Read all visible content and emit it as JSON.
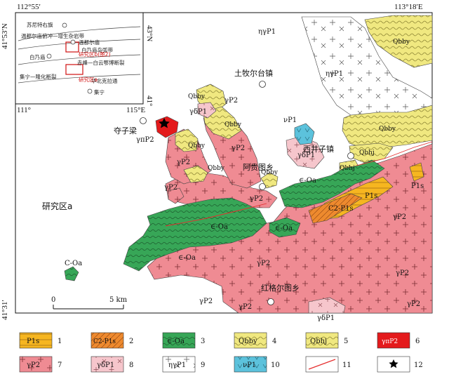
{
  "coords": {
    "top_left": "112°55′",
    "top_right": "113°18′E",
    "left_top": "41°53′N",
    "left_bottom": "41°31′",
    "right_top": "43°N"
  },
  "inset": {
    "tick_left": "111°",
    "tick_right": "115°E",
    "tick_right_lat": "41°",
    "lines": [
      {
        "text": "苏尼特右旗"
      },
      {
        "text": "温都尔庙俯冲—增生杂岩带"
      },
      {
        "text": "白乃庙岛弧带"
      },
      {
        "text": "赤峰—白云鄂博断裂"
      },
      {
        "text": "集宁—隆化断裂"
      },
      {
        "text": "华北克拉通"
      }
    ],
    "towns": [
      "温都尔庙",
      "白乃庙",
      "集宁"
    ],
    "study_b": "研究区b(图2)",
    "study_a": "研究区a"
  },
  "places": {
    "tumuertai": "土牧尔台镇",
    "duoziliang": "夺子梁",
    "xijingzi": "西井子镇",
    "aguitu": "阿贵图乡",
    "honggeertu": "红格尔图乡",
    "study_a": "研究区a"
  },
  "units": {
    "qbby": "Qbby",
    "qbhj": "Qbhj",
    "co": "∈-Oa",
    "co2": "C-Oa",
    "gp2": "γP2",
    "gdp1": "γδP1",
    "ngp1": "ηγP1",
    "vp1": "νP1",
    "gpp2": "γπP2",
    "p1s": "P1s",
    "c2p1s": "C2-P1s"
  },
  "scale": {
    "zero": "0",
    "five": "5 km"
  },
  "legend": [
    {
      "num": "1",
      "label": "P1s",
      "color": "#f6b620"
    },
    {
      "num": "2",
      "label": "C2-P1s",
      "color": "#ee8a2e"
    },
    {
      "num": "3",
      "label": "∈-Oa",
      "color": "#37a657"
    },
    {
      "num": "4",
      "label": "Qbby",
      "color": "#f0e880"
    },
    {
      "num": "5",
      "label": "Qbhj",
      "color": "#f0e880"
    },
    {
      "num": "6",
      "label": "γπP2",
      "color": "#e41a1c"
    },
    {
      "num": "7",
      "label": "γP2",
      "color": "#ef8b93"
    },
    {
      "num": "8",
      "label": "γδP1",
      "color": "#f6c6cc"
    },
    {
      "num": "9",
      "label": "ηγP1",
      "color": "#f8f1bf"
    },
    {
      "num": "10",
      "label": "νP1",
      "color": "#5cc2dc"
    },
    {
      "num": "11",
      "label": "",
      "color": "#e53030"
    },
    {
      "num": "12",
      "label": "★",
      "color": "#000000"
    }
  ]
}
